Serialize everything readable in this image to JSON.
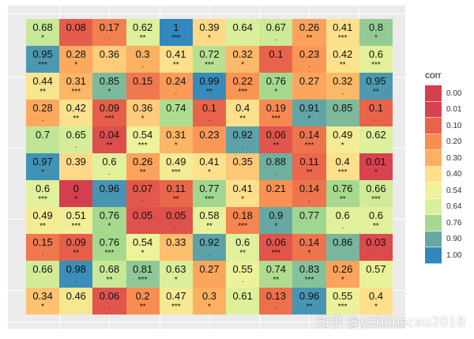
{
  "chart_data": {
    "type": "heatmap",
    "title": "",
    "xlabel": "",
    "ylabel": "",
    "rows": 11,
    "cols": 11,
    "legend": {
      "title": "corr",
      "position": "right",
      "breaks": [
        "0.00",
        "0.01",
        "0.10",
        "0.20",
        "0.30",
        "0.40",
        "0.54",
        "0.64",
        "0.76",
        "0.90",
        "1.00"
      ],
      "colors": [
        "#d53e4f",
        "#d8434f",
        "#e8634b",
        "#f88d52",
        "#fdb062",
        "#fedf8b",
        "#eef29a",
        "#d9ef9b",
        "#a6d98e",
        "#66a8a3",
        "#3288bd"
      ]
    },
    "values": [
      [
        0.68,
        0.08,
        0.17,
        0.62,
        1,
        0.39,
        0.64,
        0.67,
        0.26,
        0.41,
        0.8
      ],
      [
        0.95,
        0.28,
        0.36,
        0.3,
        0.41,
        0.72,
        0.32,
        0.1,
        0.23,
        0.42,
        0.6
      ],
      [
        0.44,
        0.31,
        0.85,
        0.15,
        0.24,
        0.99,
        0.22,
        0.76,
        0.27,
        0.32,
        0.95
      ],
      [
        0.28,
        0.42,
        0.09,
        0.36,
        0.74,
        0.1,
        0.4,
        0.19,
        0.91,
        0.85,
        0.1
      ],
      [
        0.7,
        0.65,
        0.04,
        0.54,
        0.31,
        0.23,
        0.92,
        0.06,
        0.14,
        0.49,
        0.62
      ],
      [
        0.97,
        0.39,
        0.6,
        0.26,
        0.49,
        0.41,
        0.35,
        0.88,
        0.11,
        0.4,
        0.01
      ],
      [
        0.6,
        0,
        0.96,
        0.07,
        0.11,
        0.77,
        0.41,
        0.21,
        0.14,
        0.76,
        0.66
      ],
      [
        0.49,
        0.51,
        0.76,
        0.05,
        0.05,
        0.58,
        0.18,
        0.9,
        0.77,
        0.6,
        0.6
      ],
      [
        0.15,
        0.09,
        0.76,
        0.54,
        0.33,
        0.92,
        0.6,
        0.06,
        0.14,
        0.86,
        0.03
      ],
      [
        0.66,
        0.98,
        0.68,
        0.81,
        0.63,
        0.27,
        0.55,
        0.74,
        0.83,
        0.26,
        0.57
      ],
      [
        0.34,
        0.46,
        0.06,
        0.2,
        0.47,
        0.3,
        0.61,
        0.13,
        0.96,
        0.55,
        0.4
      ]
    ],
    "significance": [
      [
        "*",
        "",
        ".",
        "**",
        "***",
        "*",
        "",
        ".",
        "**",
        "***",
        "*"
      ],
      [
        "***",
        "*",
        "",
        ".",
        "**",
        "***",
        "*",
        "",
        ".",
        "**",
        "***"
      ],
      [
        "**",
        "***",
        "*",
        "",
        ".",
        "**",
        "***",
        "*",
        "",
        ".",
        "**"
      ],
      [
        ".",
        "**",
        "***",
        "*",
        "",
        ".",
        "**",
        "***",
        "*",
        "",
        "."
      ],
      [
        "",
        ".",
        "**",
        "***",
        "*",
        "",
        ".",
        "**",
        "***",
        "*",
        ""
      ],
      [
        "*",
        "",
        ".",
        "**",
        "***",
        "*",
        "",
        ".",
        "**",
        "***",
        "*"
      ],
      [
        "***",
        "*",
        "",
        ".",
        "**",
        "***",
        "*",
        "",
        ".",
        "**",
        "***"
      ],
      [
        "**",
        "***",
        "*",
        "",
        ".",
        "**",
        "***",
        "*",
        "",
        ".",
        "**"
      ],
      [
        ".",
        "**",
        "***",
        "*",
        "",
        ".",
        "**",
        "***",
        "*",
        "",
        "."
      ],
      [
        "",
        ".",
        "**",
        "***",
        "*",
        "",
        ".",
        "**",
        "***",
        "*",
        ""
      ],
      [
        "*",
        "",
        ".",
        "**",
        "***",
        "*",
        "",
        ".",
        "**",
        "***",
        "*"
      ]
    ],
    "grid": true
  },
  "watermark": "知乎 @yzhlinscau2018"
}
